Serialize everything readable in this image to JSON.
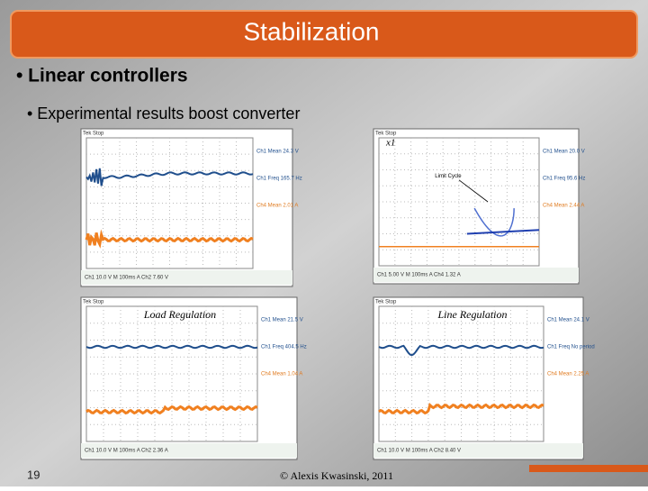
{
  "header": {
    "title": "Stabilization"
  },
  "bullets": [
    "• Linear controllers",
    "• Experimental results boost converter"
  ],
  "scopes": [
    {
      "header": "Tek Stop",
      "readouts": [
        "Ch1 Mean 24.3 V",
        "Ch1 Freq 165.7 Hz",
        "Ch4 Mean 2.01 A"
      ],
      "status": "Ch1 10.0 V  M 100ms A Ch2 7.60 V"
    },
    {
      "header": "Tek Stop",
      "trace": "x1",
      "annotation": "Limit Cycle",
      "readouts": [
        "Ch1 Mean 20.0 V",
        "Ch1 Freq 95.6 Hz",
        "Ch4 Mean 2.44 A"
      ],
      "status": "Ch1 5.00 V  M 100ms A Ch4 1.32 A"
    },
    {
      "header": "Tek Stop",
      "caption": "Load Regulation",
      "readouts": [
        "Ch1 Mean 21.5 V",
        "Ch1 Freq 404.5 Hz",
        "Ch4 Mean 1.04 A"
      ],
      "status": "Ch1 10.0 V  M 100ms A Ch2 2.36 A"
    },
    {
      "header": "Tek Stop",
      "caption": "Line Regulation",
      "readouts": [
        "Ch1 Mean 24.1 V",
        "Ch1 Freq No period",
        "Ch4 Mean 2.25 A"
      ],
      "status": "Ch1 10.0 V  M 100ms A Ch2 8.40 V"
    }
  ],
  "footer": {
    "page": "19",
    "copyright": "© Alexis Kwasinski, 2011"
  }
}
